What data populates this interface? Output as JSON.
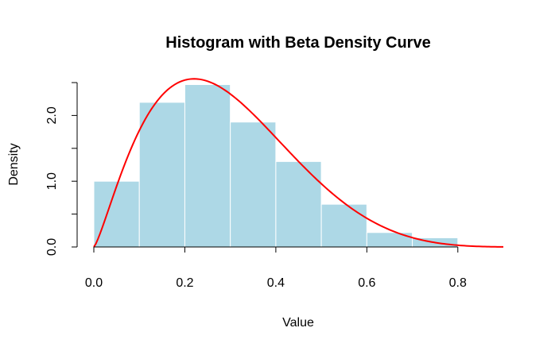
{
  "chart_data": {
    "type": "bar",
    "title": "Histogram with Beta Density Curve",
    "xlabel": "Value",
    "ylabel": "Density",
    "bins": [
      {
        "start": 0.0,
        "end": 0.1,
        "density": 1.0
      },
      {
        "start": 0.1,
        "end": 0.2,
        "density": 2.2
      },
      {
        "start": 0.2,
        "end": 0.3,
        "density": 2.47
      },
      {
        "start": 0.3,
        "end": 0.4,
        "density": 1.9
      },
      {
        "start": 0.4,
        "end": 0.5,
        "density": 1.3
      },
      {
        "start": 0.5,
        "end": 0.6,
        "density": 0.65
      },
      {
        "start": 0.6,
        "end": 0.7,
        "density": 0.22
      },
      {
        "start": 0.7,
        "end": 0.8,
        "density": 0.14
      }
    ],
    "bar_color": "#ADD8E6",
    "bar_border_color": "#ffffff",
    "curve": {
      "type": "beta-density",
      "alpha": 2.3,
      "beta": 5.6,
      "color": "#FF0000",
      "x_range": [
        0.0,
        0.9
      ]
    },
    "xlim": [
      0.0,
      0.9
    ],
    "ylim": [
      0.0,
      2.5
    ],
    "x_ticks": [
      0.0,
      0.2,
      0.4,
      0.6,
      0.8
    ],
    "x_tick_labels": [
      "0.0",
      "0.2",
      "0.4",
      "0.6",
      "0.8"
    ],
    "y_ticks": [
      0.0,
      0.5,
      1.0,
      1.5,
      2.0,
      2.5
    ],
    "y_tick_labels": [
      "0.0",
      "",
      "1.0",
      "",
      "2.0",
      ""
    ],
    "grid": false,
    "legend": "none"
  }
}
